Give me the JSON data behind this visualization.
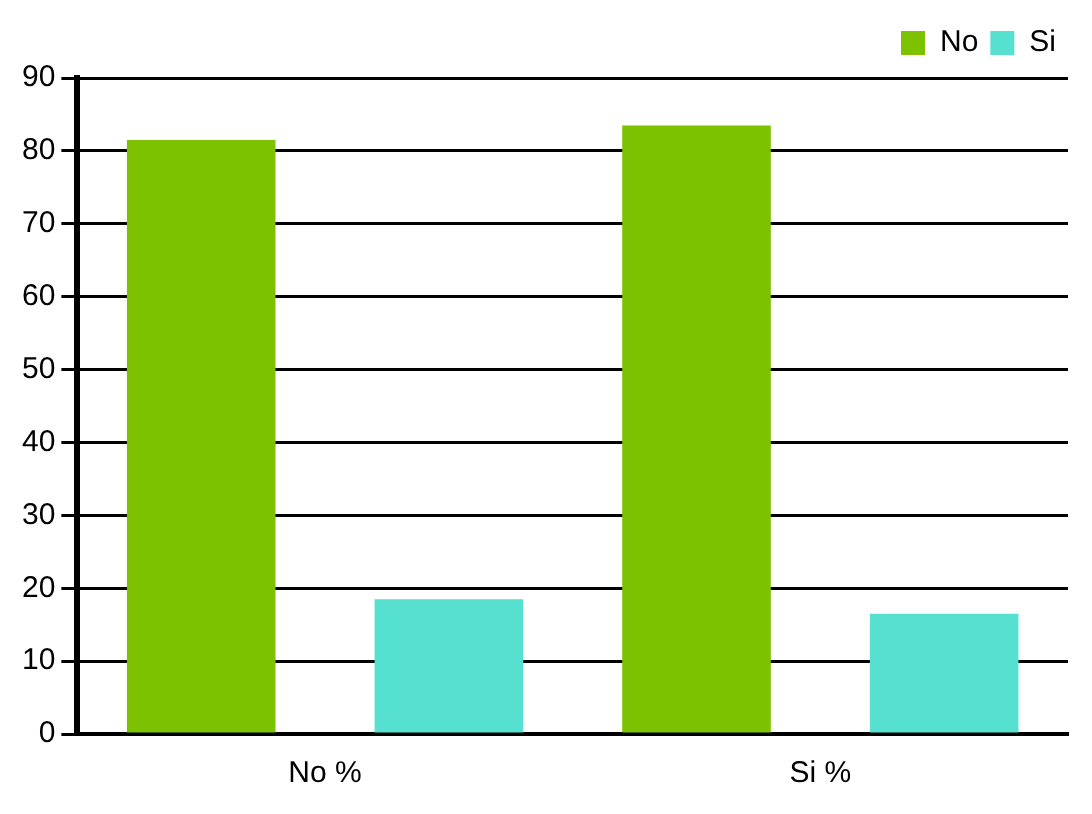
{
  "chart_data": {
    "type": "bar",
    "categories": [
      "No %",
      "Si %"
    ],
    "series": [
      {
        "name": "No",
        "color": "#7cc200",
        "values": [
          81.5,
          83.5
        ]
      },
      {
        "name": "Si",
        "color": "#55e0d0",
        "values": [
          18.5,
          16.5
        ]
      }
    ],
    "ylim": [
      0,
      90
    ],
    "yticks": [
      0,
      10,
      20,
      30,
      40,
      50,
      60,
      70,
      80,
      90
    ],
    "grid": "y",
    "legend": "top right"
  }
}
